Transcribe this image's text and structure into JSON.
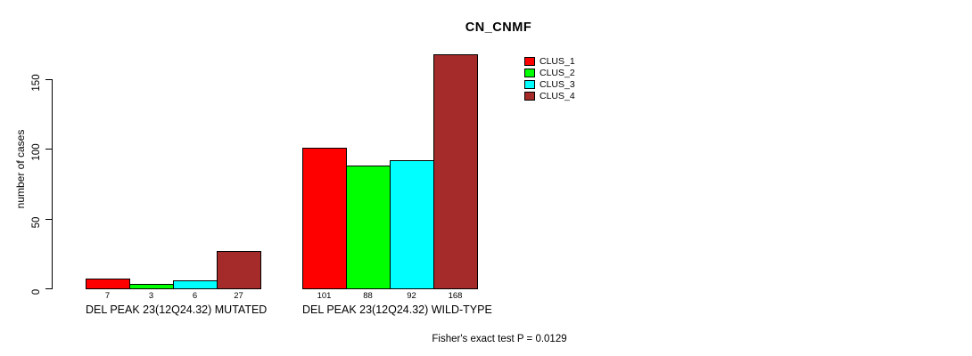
{
  "chart_data": {
    "type": "bar",
    "title": "CN_CNMF",
    "xlabel": "",
    "ylabel": "number of cases",
    "ylim": [
      0,
      150
    ],
    "yticks": [
      0,
      50,
      100,
      150
    ],
    "grid": false,
    "legend_position": "top-right",
    "categories": [
      "DEL PEAK 23(12Q24.32) MUTATED",
      "DEL PEAK 23(12Q24.32) WILD-TYPE"
    ],
    "series": [
      {
        "name": "CLUS_1",
        "color": "#FF0000",
        "values": [
          7,
          101
        ]
      },
      {
        "name": "CLUS_2",
        "color": "#00FF00",
        "values": [
          3,
          88
        ]
      },
      {
        "name": "CLUS_3",
        "color": "#00FFFF",
        "values": [
          6,
          92
        ]
      },
      {
        "name": "CLUS_4",
        "color": "#A52A2A",
        "values": [
          27,
          168
        ]
      }
    ],
    "bar_value_labels": [
      [
        "7",
        "3",
        "6",
        "27"
      ],
      [
        "101",
        "88",
        "92",
        "168"
      ]
    ],
    "annotation": "Fisher's exact test P = 0.0129"
  }
}
